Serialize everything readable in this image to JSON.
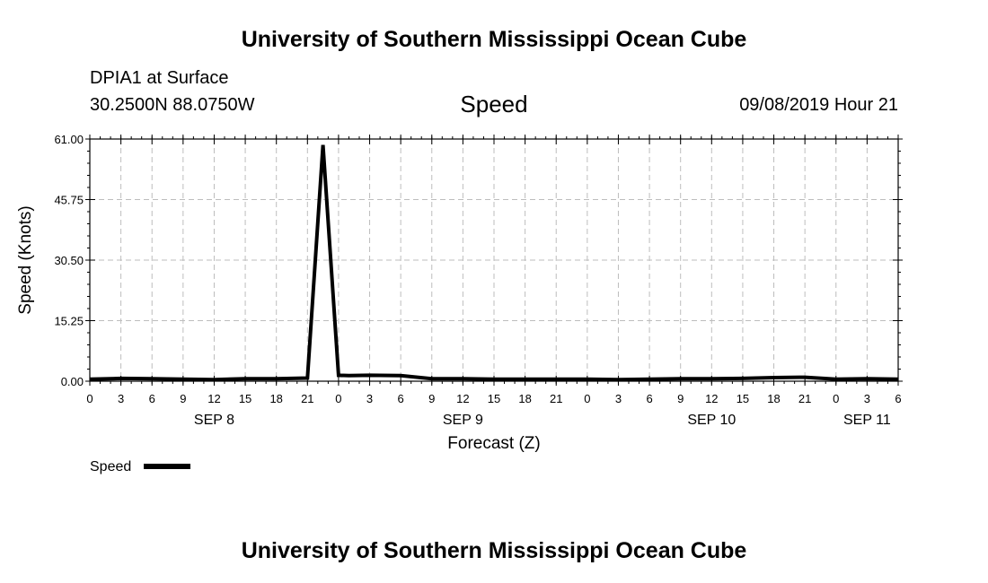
{
  "header": {
    "top_title": "University of Southern Mississippi Ocean Cube",
    "station": "DPIA1 at Surface",
    "coords": "30.2500N 88.0750W",
    "variable": "Speed",
    "datetime": "09/08/2019 Hour 21",
    "bottom_title": "University of Southern Mississippi Ocean Cube"
  },
  "legend": {
    "label": "Speed"
  },
  "colors": {
    "line": "#000000",
    "grid": "#bdbdbd"
  },
  "chart_data": {
    "type": "line",
    "xlabel": "Forecast (Z)",
    "ylabel": "Speed (Knots)",
    "ylim": [
      0,
      61
    ],
    "yticks": [
      "0.00",
      "15.25",
      "30.50",
      "45.75",
      "61.00"
    ],
    "xlim": [
      0,
      78
    ],
    "xtick_labels": [
      "0",
      "3",
      "6",
      "9",
      "12",
      "15",
      "18",
      "21",
      "0",
      "3",
      "6",
      "9",
      "12",
      "15",
      "18",
      "21",
      "0",
      "3",
      "6",
      "9",
      "12",
      "15",
      "18",
      "21",
      "0",
      "3",
      "6"
    ],
    "date_labels": [
      {
        "label": "SEP 8",
        "hour": 12
      },
      {
        "label": "SEP 9",
        "hour": 36
      },
      {
        "label": "SEP 10",
        "hour": 60
      },
      {
        "label": "SEP 11",
        "hour": 75
      }
    ],
    "grid": true,
    "legend_position": "bottom-left",
    "series": [
      {
        "name": "Speed",
        "x": [
          0,
          3,
          6,
          9,
          12,
          15,
          18,
          21,
          22.5,
          24,
          25,
          27,
          30,
          33,
          36,
          39,
          42,
          45,
          48,
          51,
          54,
          57,
          60,
          63,
          66,
          69,
          72,
          75,
          78
        ],
        "y": [
          0.5,
          0.7,
          0.6,
          0.5,
          0.4,
          0.6,
          0.6,
          0.8,
          59.5,
          1.5,
          1.4,
          1.5,
          1.4,
          0.6,
          0.6,
          0.5,
          0.5,
          0.5,
          0.5,
          0.4,
          0.5,
          0.6,
          0.6,
          0.7,
          0.9,
          1.0,
          0.5,
          0.6,
          0.5
        ]
      }
    ]
  }
}
